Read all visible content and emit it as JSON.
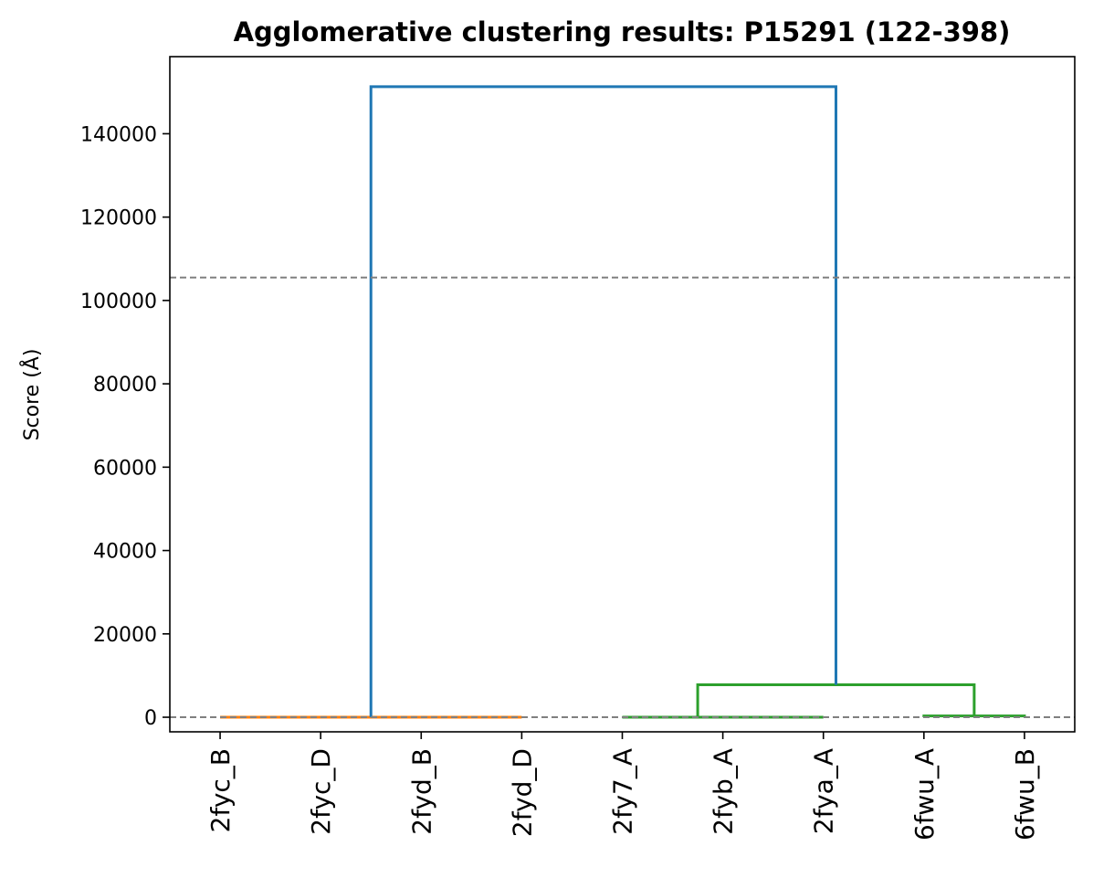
{
  "chart_data": {
    "type": "dendrogram",
    "title": "Agglomerative clustering results: P15291 (122-398)",
    "xlabel": "",
    "ylabel": "Score (Å)",
    "ylim": [
      -3500,
      158500
    ],
    "yticks": [
      0,
      20000,
      40000,
      60000,
      80000,
      100000,
      120000,
      140000
    ],
    "leaves": [
      "2fyc_B",
      "2fyc_D",
      "2fyd_B",
      "2fyd_D",
      "2fy7_A",
      "2fyb_A",
      "2fya_A",
      "6fwu_A",
      "6fwu_B"
    ],
    "thresholds": [
      105500,
      0
    ],
    "grid": false,
    "links": [
      {
        "icoord": [
          5,
          5,
          15,
          15
        ],
        "dcoord": [
          0,
          0,
          0,
          0
        ],
        "color": "#ff7f0e"
      },
      {
        "icoord": [
          25,
          25,
          35,
          35
        ],
        "dcoord": [
          0,
          0,
          0,
          0
        ],
        "color": "#ff7f0e"
      },
      {
        "icoord": [
          10,
          10,
          30,
          30
        ],
        "dcoord": [
          0,
          0,
          0,
          0
        ],
        "color": "#ff7f0e"
      },
      {
        "icoord": [
          55,
          55,
          65,
          65
        ],
        "dcoord": [
          0,
          0,
          0,
          0
        ],
        "color": "#2ca02c"
      },
      {
        "icoord": [
          45,
          45,
          60,
          60
        ],
        "dcoord": [
          0,
          0,
          0,
          0
        ],
        "color": "#2ca02c"
      },
      {
        "icoord": [
          75,
          75,
          85,
          85
        ],
        "dcoord": [
          0,
          300,
          300,
          0
        ],
        "color": "#2ca02c"
      },
      {
        "icoord": [
          52.5,
          52.5,
          80,
          80
        ],
        "dcoord": [
          0,
          7800,
          7800,
          300
        ],
        "color": "#2ca02c"
      },
      {
        "icoord": [
          20,
          20,
          66.25,
          66.25
        ],
        "dcoord": [
          0,
          151300,
          151300,
          7800
        ],
        "color": "#1f77b4"
      }
    ]
  }
}
